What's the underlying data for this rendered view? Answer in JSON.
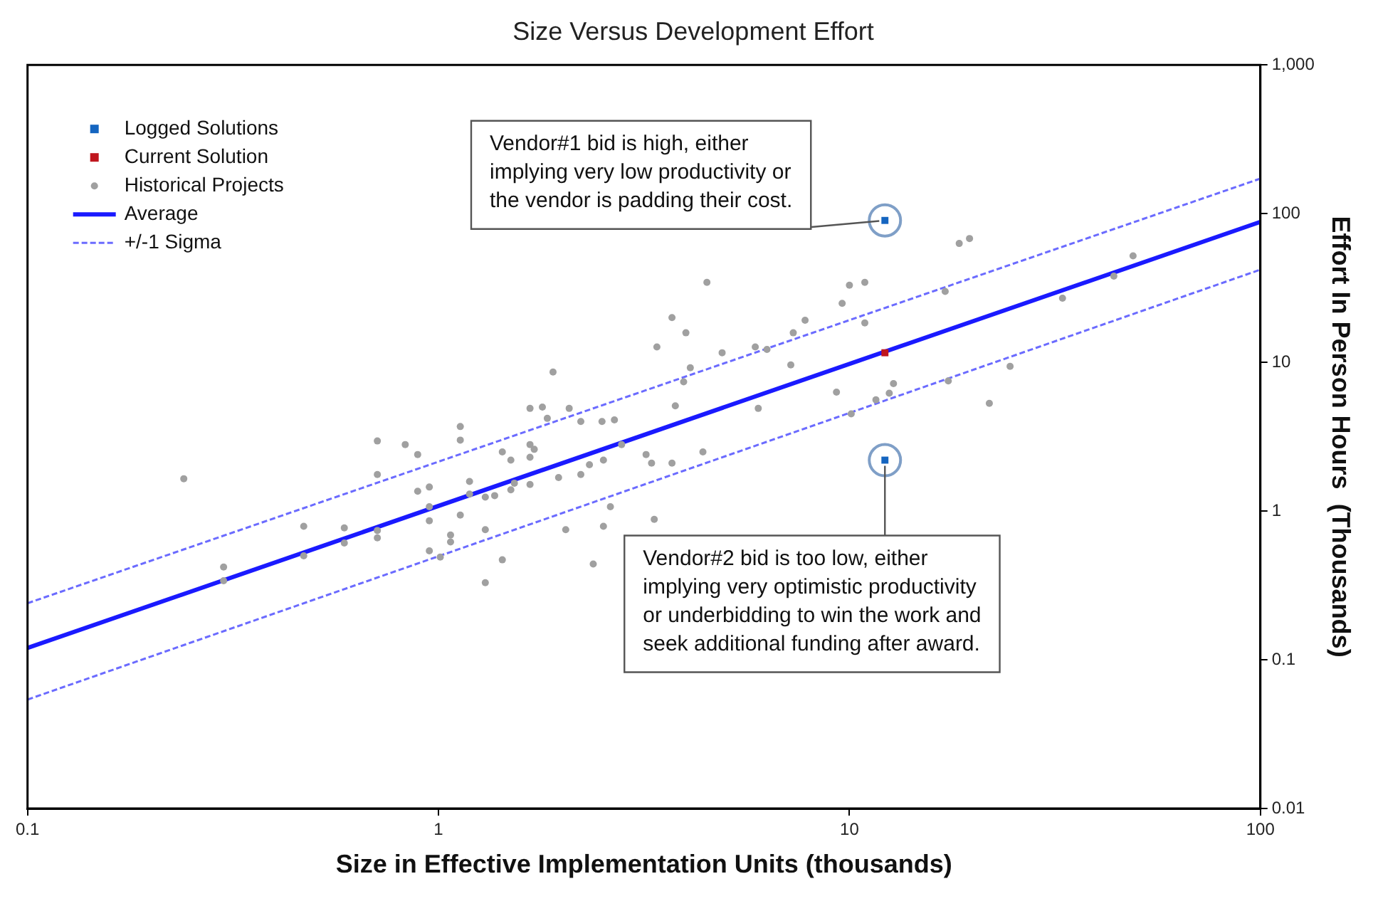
{
  "chart_data": {
    "type": "scatter",
    "title": "Size Versus Development Effort",
    "xlabel": "Size in Effective Implementation Units (thousands)",
    "ylabel": "Effort In Person Hours  (Thousands)",
    "log": "xy",
    "grid": false,
    "legend": "top left",
    "xlim": [
      0.1,
      100
    ],
    "xticks": [
      0.1,
      1,
      10,
      100
    ],
    "ylim": [
      0.01,
      1000
    ],
    "yticks": [
      0.01,
      0.1,
      1,
      10,
      100,
      {
        "value": 1000,
        "label": "1,000"
      }
    ],
    "series": [
      {
        "name": "Logged Solutions",
        "type": "scatter",
        "marker": "square",
        "color": "#1565c0",
        "x": [
          12.2,
          12.2
        ],
        "values": [
          90,
          2.2
        ]
      },
      {
        "name": "Current Solution",
        "type": "scatter",
        "marker": "square",
        "color": "#c0161e",
        "x": [
          12.2
        ],
        "values": [
          11.6
        ]
      },
      {
        "name": "Historical Projects",
        "type": "scatter",
        "marker": "circle",
        "color": "#a0a0a0",
        "x": [
          0.24,
          0.3,
          0.3,
          0.47,
          0.47,
          0.59,
          0.59,
          0.71,
          0.71,
          0.71,
          0.71,
          0.83,
          0.89,
          0.89,
          0.95,
          0.95,
          0.95,
          0.95,
          1.01,
          1.07,
          1.07,
          1.13,
          1.13,
          1.13,
          1.19,
          1.19,
          1.3,
          1.3,
          1.3,
          1.37,
          1.43,
          1.43,
          1.5,
          1.5,
          1.53,
          1.67,
          1.67,
          1.71,
          1.67,
          1.67,
          1.79,
          1.84,
          1.9,
          1.96,
          4.5,
          10.9,
          10.0,
          9.6,
          3.7,
          4.0,
          7.8,
          7.3,
          3.4,
          5.9,
          6.3,
          4.9,
          4.1,
          3.95,
          7.2,
          2.08,
          2.22,
          2.5,
          2.68,
          3.77,
          6.0,
          9.3,
          12.8,
          12.5,
          11.6,
          10.1,
          2.79,
          3.2,
          3.3,
          3.7,
          4.4,
          2.52,
          2.33,
          2.22,
          2.62,
          3.35,
          2.52,
          2.04,
          2.38,
          18.5,
          19.6,
          17.1,
          10.9,
          49,
          33,
          44,
          24.6,
          17.4,
          21.9
        ],
        "values": [
          1.65,
          0.42,
          0.34,
          0.79,
          0.5,
          0.77,
          0.61,
          2.96,
          1.76,
          0.74,
          0.66,
          2.8,
          2.4,
          1.36,
          1.45,
          1.07,
          0.86,
          0.54,
          0.49,
          0.69,
          0.62,
          3.7,
          3.0,
          0.94,
          1.58,
          1.3,
          1.24,
          0.75,
          0.33,
          1.27,
          2.5,
          0.47,
          2.2,
          1.39,
          1.54,
          4.9,
          2.8,
          2.6,
          2.3,
          1.51,
          5.0,
          4.2,
          8.6,
          1.68,
          34.5,
          34.5,
          33,
          24.9,
          20,
          15.8,
          19.2,
          15.8,
          12.7,
          12.7,
          12.2,
          11.6,
          9.2,
          7.4,
          9.6,
          4.9,
          4.0,
          4.0,
          4.1,
          5.1,
          4.9,
          6.3,
          7.2,
          6.2,
          5.6,
          4.5,
          2.8,
          2.4,
          2.1,
          2.1,
          2.5,
          2.2,
          2.05,
          1.76,
          1.07,
          0.88,
          0.79,
          0.75,
          0.44,
          63,
          68,
          30,
          18.4,
          52,
          27,
          38,
          9.4,
          7.5,
          5.3
        ]
      },
      {
        "name": "Average",
        "type": "line",
        "marker": "none",
        "line_style": "solid",
        "color": "#1a1aff",
        "x": [
          0.1,
          100
        ],
        "values": [
          0.12,
          88
        ]
      },
      {
        "name": "+/-1 Sigma",
        "type": "line",
        "marker": "none",
        "line_style": "dashed",
        "color": "#6b6bff",
        "x": [
          0.1,
          100
        ],
        "values": [
          0.24,
          172
        ]
      },
      {
        "type": "line",
        "marker": "none",
        "line_style": "dashed",
        "color": "#6b6bff",
        "x": [
          0.1,
          100
        ],
        "values": [
          0.054,
          42
        ]
      }
    ],
    "annotations": [
      {
        "text": "Vendor#1 bid is high, either\nimplying very low productivity or\nthe vendor is padding their cost.",
        "x": 12.2,
        "y": 90
      },
      {
        "text": "Vendor#2 bid is too low, either\nimplying very optimistic productivity\nor underbidding to win the work and\nseek additional funding after award.",
        "x": 12.2,
        "y": 2.2
      }
    ]
  }
}
